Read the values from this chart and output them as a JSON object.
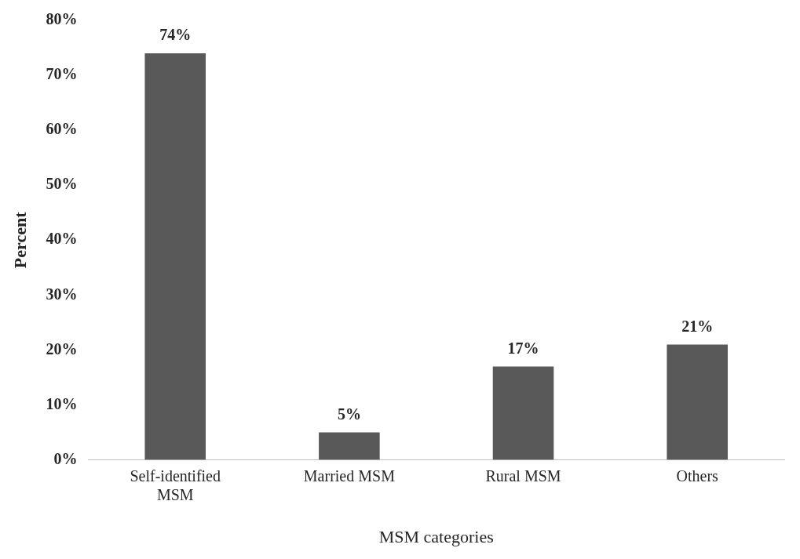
{
  "chart_data": {
    "type": "bar",
    "xlabel": "MSM categories",
    "ylabel": "Percent",
    "categories": [
      "Self-identified MSM",
      "Married MSM",
      "Rural MSM",
      "Others"
    ],
    "values": [
      74,
      5,
      17,
      21
    ],
    "color": "#595959",
    "value_labels": [
      "74%",
      "5%",
      "17%",
      "21%"
    ],
    "ylim": [
      0,
      80
    ],
    "yticks": [
      {
        "value": 0,
        "label": "0%"
      },
      {
        "value": 10,
        "label": "10%"
      },
      {
        "value": 20,
        "label": "20%"
      },
      {
        "value": 30,
        "label": "30%"
      },
      {
        "value": 40,
        "label": "40%"
      },
      {
        "value": 50,
        "label": "50%"
      },
      {
        "value": 60,
        "label": "60%"
      },
      {
        "value": 70,
        "label": "70%"
      },
      {
        "value": 80,
        "label": "80%"
      }
    ],
    "grid": false,
    "legend": false
  }
}
